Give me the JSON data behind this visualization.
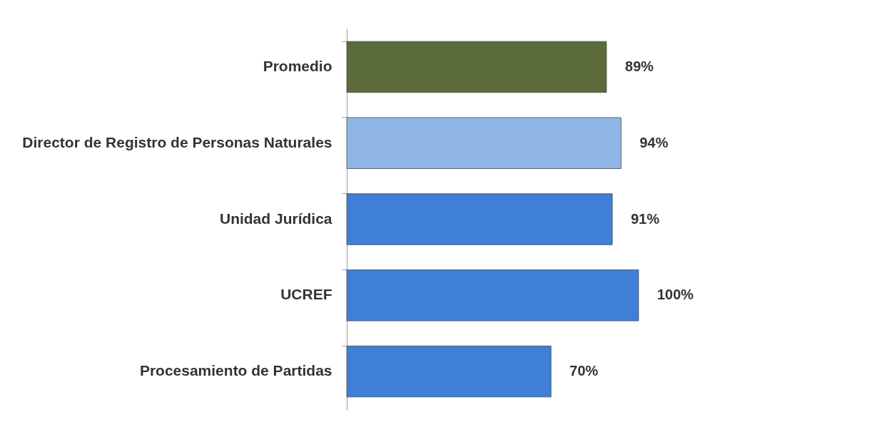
{
  "chart_data": {
    "type": "bar",
    "orientation": "horizontal",
    "categories": [
      "Promedio",
      "Director de Registro de Personas Naturales",
      "Unidad Jurídica",
      "UCREF",
      "Procesamiento de Partidas"
    ],
    "values": [
      89,
      94,
      91,
      100,
      70
    ],
    "colors": [
      "#5b6b3a",
      "#8fb6e6",
      "#3f7fd6",
      "#3f7fd6",
      "#3f7fd6"
    ],
    "value_labels": [
      "89%",
      "94%",
      "91%",
      "100%",
      "70%"
    ]
  }
}
